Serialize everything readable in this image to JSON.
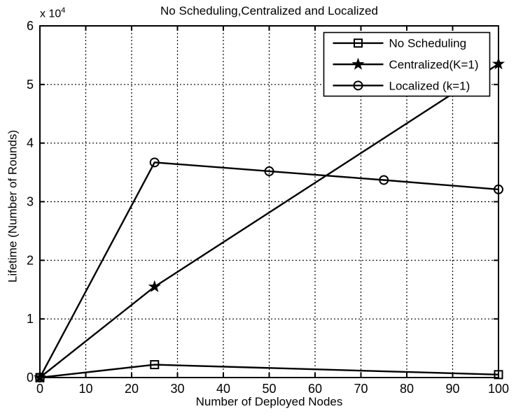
{
  "figure": {
    "title": "No Scheduling,Centralized and Localized",
    "xlabel": "Number of Deployed Nodes",
    "ylabel": "Lifetime (Number of Rounds)",
    "exponent": {
      "base": "x 10",
      "power": "4"
    }
  },
  "chart_data": {
    "type": "line",
    "title": "No Scheduling,Centralized and Localized",
    "xlabel": "Number of Deployed Nodes",
    "ylabel": "Lifetime (Number of Rounds)",
    "xlim": [
      0,
      100
    ],
    "ylim": [
      0,
      60000
    ],
    "xticks": [
      0,
      10,
      20,
      30,
      40,
      50,
      60,
      70,
      80,
      90,
      100
    ],
    "yticks": [
      0,
      10000,
      20000,
      30000,
      40000,
      50000,
      60000
    ],
    "ytick_labels": [
      "0",
      "1",
      "2",
      "3",
      "4",
      "5",
      "6"
    ],
    "y_exponent_label": "x 10^4",
    "grid": true,
    "grid_style": "dotted",
    "legend_position": "upper-right",
    "line_color": "#000000",
    "background_color": "#ffffff",
    "series": [
      {
        "name": "No Scheduling",
        "marker": "square",
        "x": [
          0,
          25,
          100
        ],
        "y": [
          0,
          2200,
          500
        ]
      },
      {
        "name": "Centralized(K=1)",
        "marker": "star",
        "x": [
          0,
          25,
          100
        ],
        "y": [
          0,
          15500,
          53500
        ]
      },
      {
        "name": "Localized (k=1)",
        "marker": "circle",
        "x": [
          0,
          25,
          50,
          75,
          100
        ],
        "y": [
          0,
          36700,
          35200,
          33700,
          32100
        ]
      }
    ]
  }
}
